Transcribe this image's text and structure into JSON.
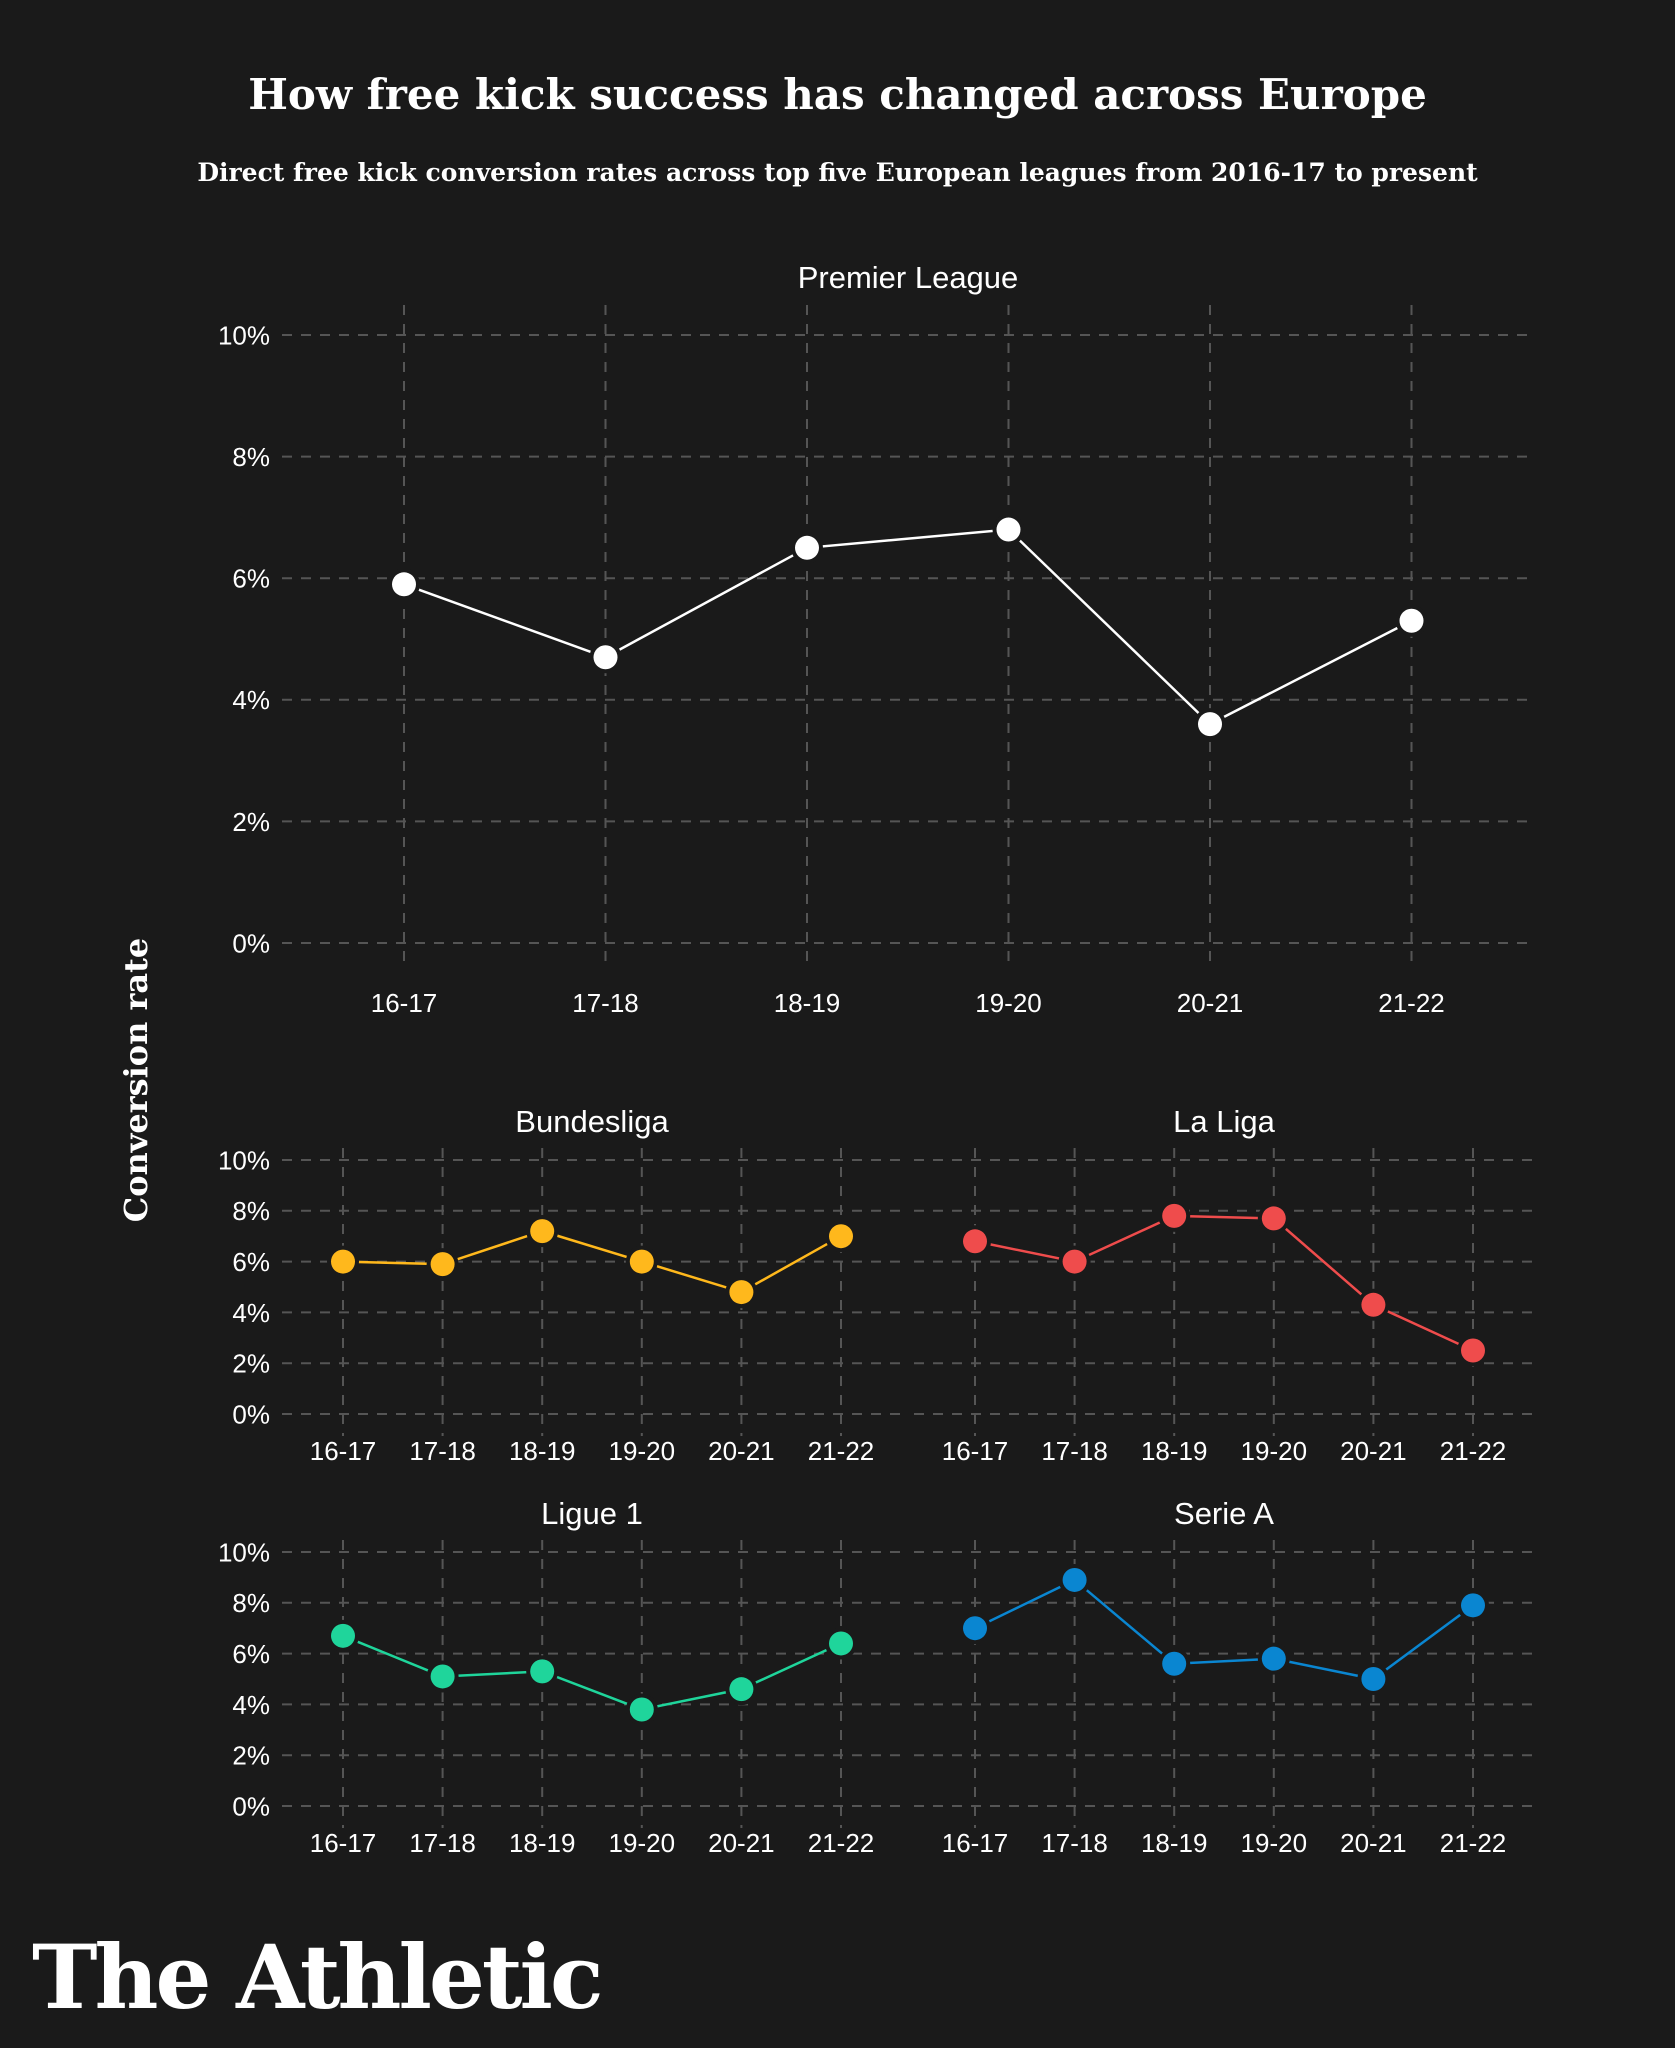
{
  "header": {
    "title": "How free kick success has changed across Europe",
    "subtitle": "Direct free kick conversion rates across top five European leagues from 2016-17 to present"
  },
  "y_axis_label": "Conversion rate",
  "brand": {
    "logo_text": "The Athletic"
  },
  "colors": {
    "background": "#1a1a1a",
    "grid": "#555555",
    "text": "#ffffff"
  },
  "chart_data": [
    {
      "type": "line",
      "title": "Premier League",
      "categories": [
        "16-17",
        "17-18",
        "18-19",
        "19-20",
        "20-21",
        "21-22"
      ],
      "values": [
        5.9,
        4.7,
        6.5,
        6.8,
        3.6,
        5.3
      ],
      "yticks": [
        "0%",
        "2%",
        "4%",
        "6%",
        "8%",
        "10%"
      ],
      "ylim": [
        0,
        10
      ],
      "ylabel": "Conversion rate",
      "color": "#ffffff",
      "grid": true
    },
    {
      "type": "line",
      "title": "Bundesliga",
      "categories": [
        "16-17",
        "17-18",
        "18-19",
        "19-20",
        "20-21",
        "21-22"
      ],
      "values": [
        6.0,
        5.9,
        7.2,
        6.0,
        4.8,
        7.0
      ],
      "yticks": [
        "0%",
        "2%",
        "4%",
        "6%",
        "8%",
        "10%"
      ],
      "ylim": [
        0,
        10
      ],
      "color": "#ffb81c",
      "grid": true
    },
    {
      "type": "line",
      "title": "La Liga",
      "categories": [
        "16-17",
        "17-18",
        "18-19",
        "19-20",
        "20-21",
        "21-22"
      ],
      "values": [
        6.8,
        6.0,
        7.8,
        7.7,
        4.3,
        2.5
      ],
      "yticks": [
        "0%",
        "2%",
        "4%",
        "6%",
        "8%",
        "10%"
      ],
      "ylim": [
        0,
        10
      ],
      "color": "#ef4c4c",
      "grid": true
    },
    {
      "type": "line",
      "title": "Ligue 1",
      "categories": [
        "16-17",
        "17-18",
        "18-19",
        "19-20",
        "20-21",
        "21-22"
      ],
      "values": [
        6.7,
        5.1,
        5.3,
        3.8,
        4.6,
        6.4
      ],
      "yticks": [
        "0%",
        "2%",
        "4%",
        "6%",
        "8%",
        "10%"
      ],
      "ylim": [
        0,
        10
      ],
      "color": "#1fd59b",
      "grid": true
    },
    {
      "type": "line",
      "title": "Serie A",
      "categories": [
        "16-17",
        "17-18",
        "18-19",
        "19-20",
        "20-21",
        "21-22"
      ],
      "values": [
        7.0,
        8.9,
        5.6,
        5.8,
        5.0,
        7.9
      ],
      "yticks": [
        "0%",
        "2%",
        "4%",
        "6%",
        "8%",
        "10%"
      ],
      "ylim": [
        0,
        10
      ],
      "color": "#0a86d1",
      "grid": true
    }
  ]
}
